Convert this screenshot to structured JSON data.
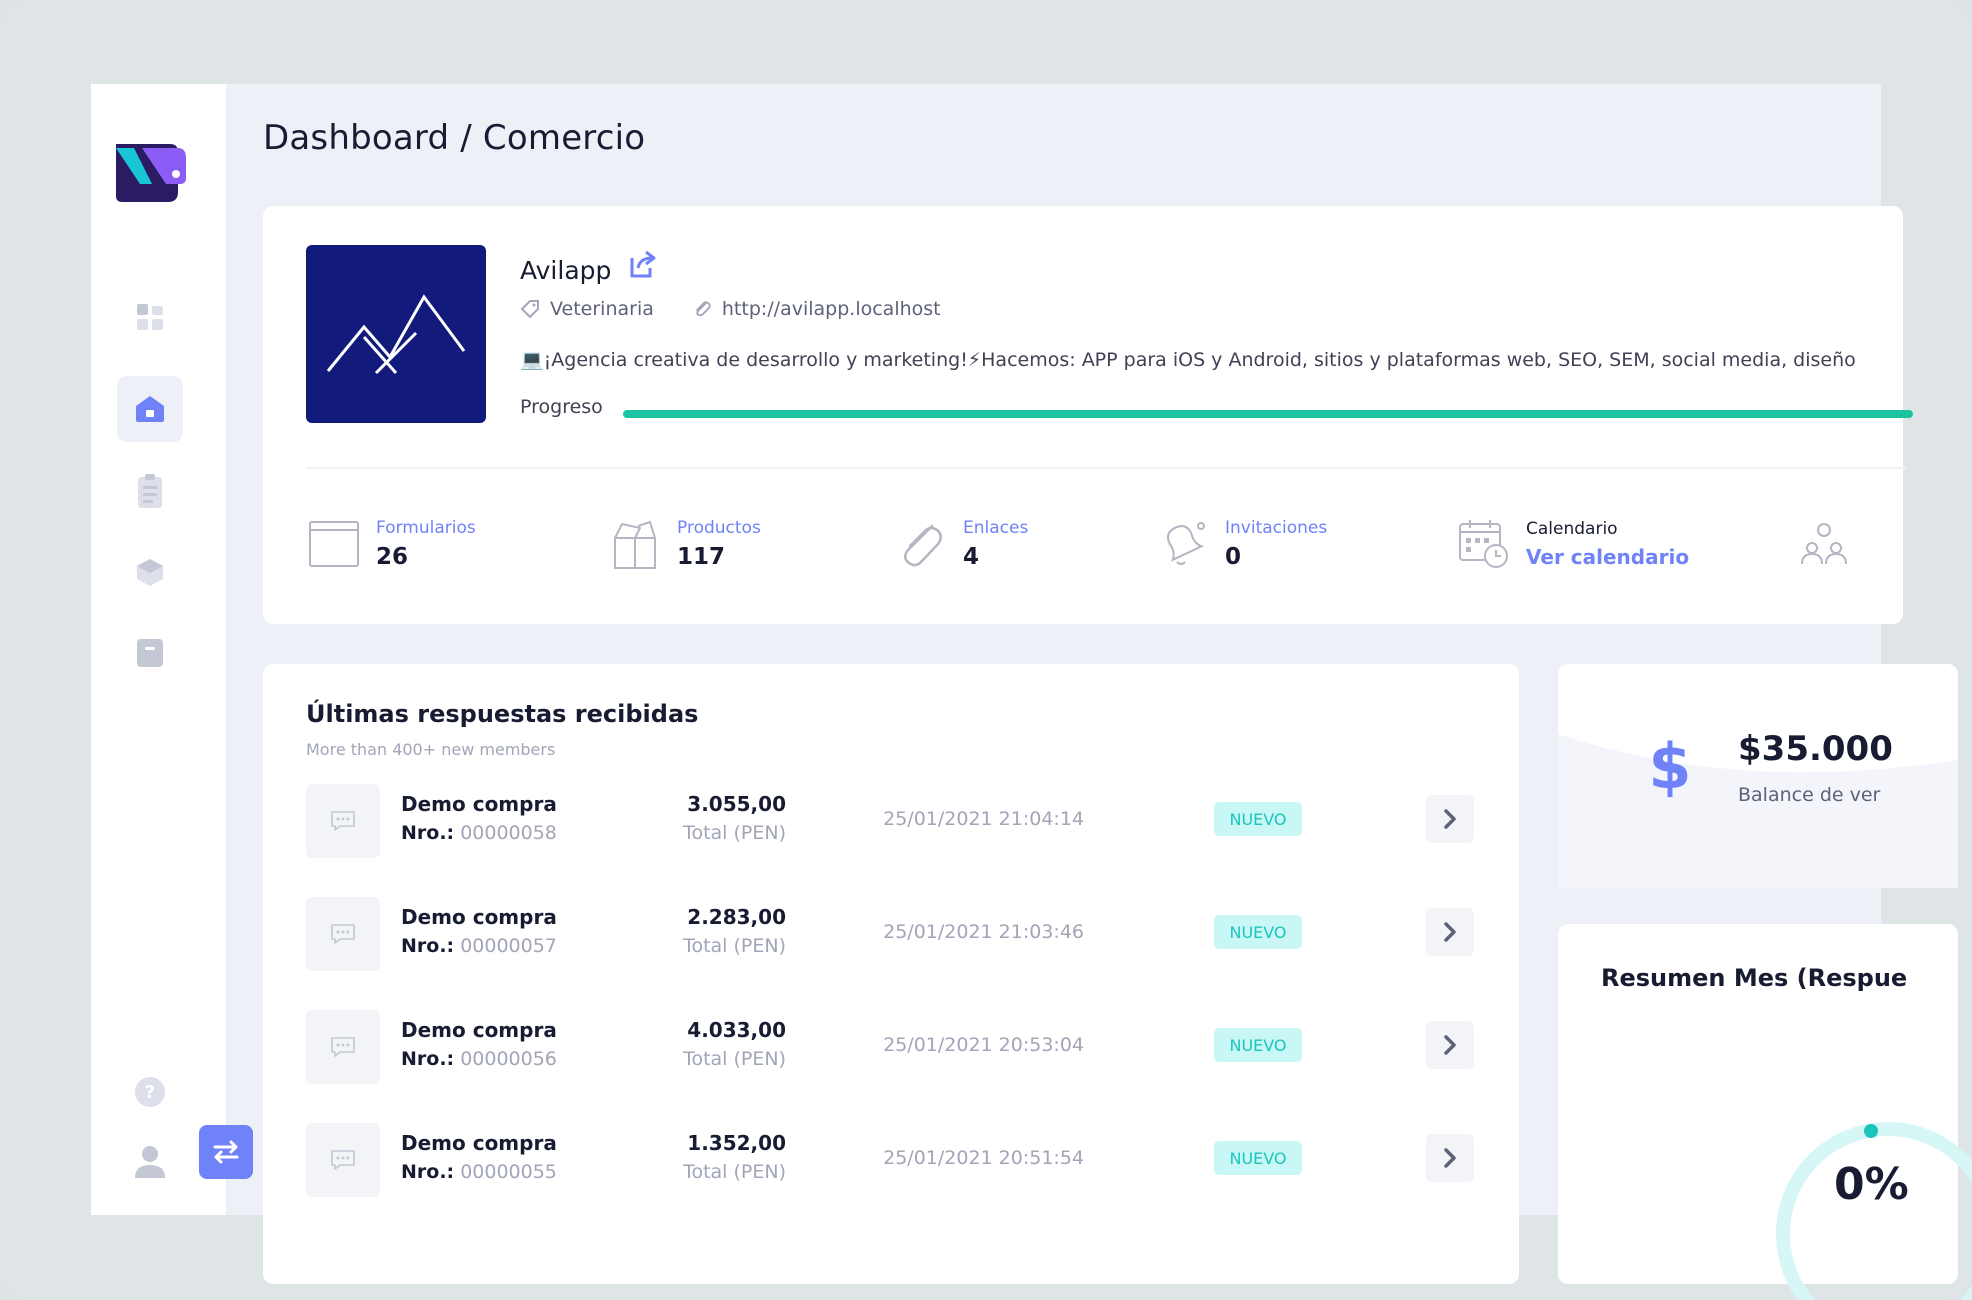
{
  "page": {
    "title": "Dashboard / Comercio"
  },
  "profile": {
    "name": "Avilapp",
    "category": "Veterinaria",
    "url": "http://avilapp.localhost",
    "description": "💻¡Agencia creativa de desarrollo y marketing!⚡Hacemos: APP para iOS y Android, sitios y plataformas web, SEO, SEM, social media, diseño",
    "progress_label": "Progreso",
    "progress_value": 1.0
  },
  "stats": [
    {
      "label": "Formularios",
      "value": "26",
      "icon": "browser-window-icon"
    },
    {
      "label": "Productos",
      "value": "117",
      "icon": "open-box-icon"
    },
    {
      "label": "Enlaces",
      "value": "4",
      "icon": "paperclip-icon"
    },
    {
      "label": "Invitaciones",
      "value": "0",
      "icon": "bell-icon"
    },
    {
      "label": "Calendario",
      "value": "Ver calendario",
      "icon": "calendar-clock-icon"
    },
    {
      "label": "",
      "value": "",
      "icon": "users-group-icon"
    }
  ],
  "responses": {
    "title": "Últimas respuestas recibidas",
    "subtitle": "More than 400+ new members",
    "rows": [
      {
        "name": "Demo compra",
        "nro_label": "Nro.:",
        "nro": "00000058",
        "amount": "3.055,00",
        "currency": "Total (PEN)",
        "date": "25/01/2021 21:04:14",
        "status": "NUEVO"
      },
      {
        "name": "Demo compra",
        "nro_label": "Nro.:",
        "nro": "00000057",
        "amount": "2.283,00",
        "currency": "Total (PEN)",
        "date": "25/01/2021 21:03:46",
        "status": "NUEVO"
      },
      {
        "name": "Demo compra",
        "nro_label": "Nro.:",
        "nro": "00000056",
        "amount": "4.033,00",
        "currency": "Total (PEN)",
        "date": "25/01/2021 20:53:04",
        "status": "NUEVO"
      },
      {
        "name": "Demo compra",
        "nro_label": "Nro.:",
        "nro": "00000055",
        "amount": "1.352,00",
        "currency": "Total (PEN)",
        "date": "25/01/2021 20:51:54",
        "status": "NUEVO"
      }
    ]
  },
  "balance": {
    "amount": "$35.000",
    "label": "Balance de ver"
  },
  "summary": {
    "title": "Resumen Mes (Respue",
    "percent": "0%",
    "value": 0
  },
  "colors": {
    "accent": "#6f82f7",
    "success": "#1bc5a2",
    "badge_bg": "#c9f7f5",
    "badge_text": "#1bc5bd",
    "profile_bg": "#121a7c"
  }
}
